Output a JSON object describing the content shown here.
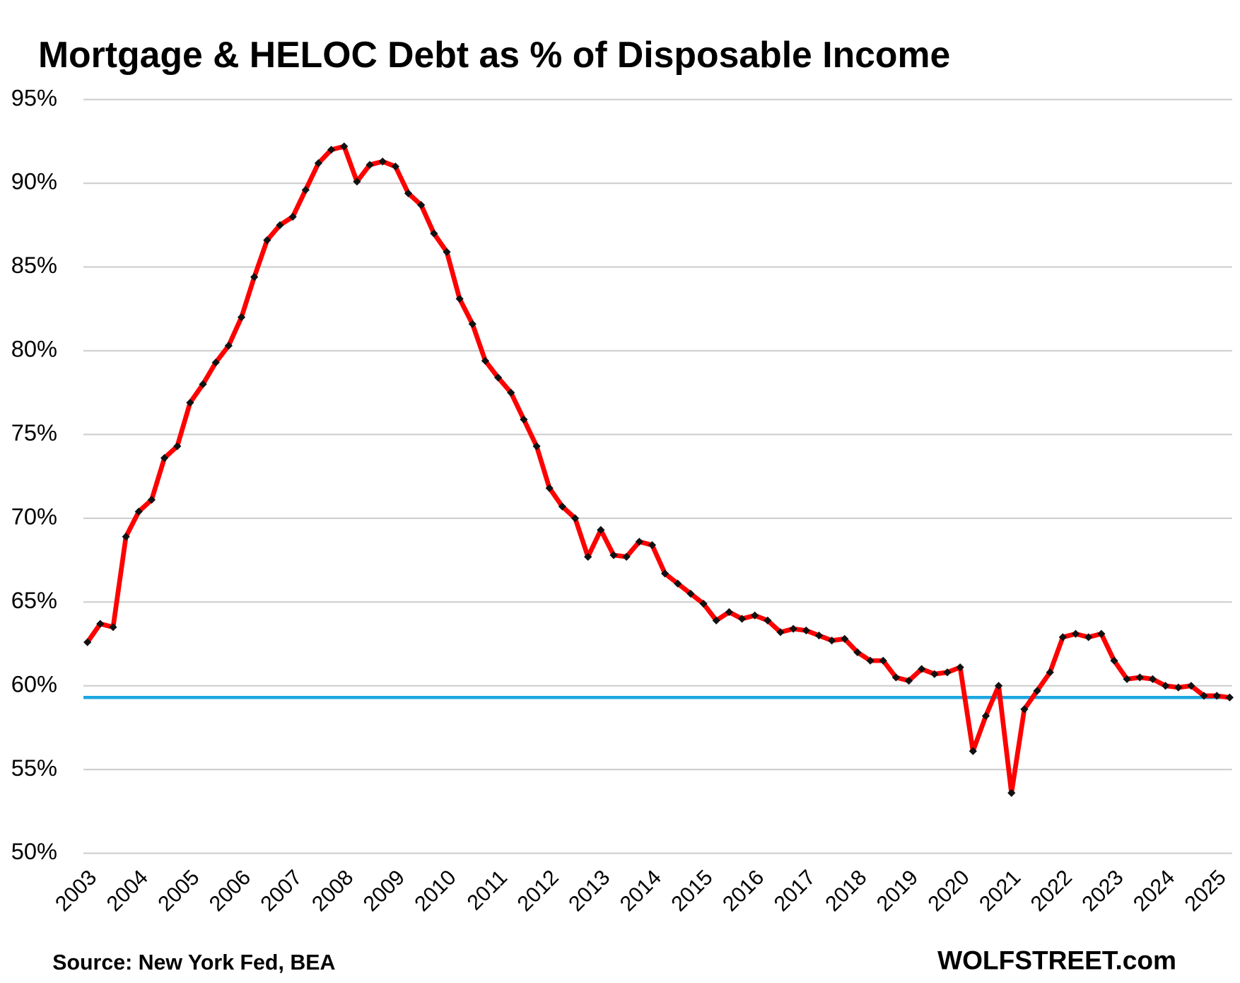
{
  "chart_data": {
    "type": "line",
    "title": "Mortgage & HELOC Debt as % of Disposable Income",
    "source": "Source: New York Fed, BEA",
    "brand": "WOLFSTREET.com",
    "categories": [
      "2003",
      null,
      null,
      null,
      "2004",
      null,
      null,
      null,
      "2005",
      null,
      null,
      null,
      "2006",
      null,
      null,
      null,
      "2007",
      null,
      null,
      null,
      "2008",
      null,
      null,
      null,
      "2009",
      null,
      null,
      null,
      "2010",
      null,
      null,
      null,
      "2011",
      null,
      null,
      null,
      "2012",
      null,
      null,
      null,
      "2013",
      null,
      null,
      null,
      "2014",
      null,
      null,
      null,
      "2015",
      null,
      null,
      null,
      "2016",
      null,
      null,
      null,
      "2017",
      null,
      null,
      null,
      "2018",
      null,
      null,
      null,
      "2019",
      null,
      null,
      null,
      "2020",
      null,
      null,
      null,
      "2021",
      null,
      null,
      null,
      "2022",
      null,
      null,
      null,
      "2023",
      null,
      null,
      null,
      "2024",
      null,
      null,
      null,
      "2025",
      null
    ],
    "series": [
      {
        "color": "#ff0000",
        "marker_color": "#111111",
        "values": [
          62.6,
          63.7,
          63.5,
          68.9,
          70.4,
          71.1,
          73.6,
          74.3,
          76.9,
          78.0,
          79.3,
          80.3,
          82.0,
          84.4,
          86.6,
          87.5,
          88.0,
          89.6,
          91.2,
          92.0,
          92.2,
          90.1,
          91.1,
          91.3,
          91.0,
          89.4,
          88.7,
          87.0,
          85.9,
          83.1,
          81.6,
          79.4,
          78.4,
          77.5,
          75.9,
          74.3,
          71.8,
          70.7,
          70.0,
          67.7,
          69.3,
          67.8,
          67.7,
          68.6,
          68.4,
          66.7,
          66.1,
          65.5,
          64.9,
          63.9,
          64.4,
          64.0,
          64.2,
          63.9,
          63.2,
          63.4,
          63.3,
          63.0,
          62.7,
          62.8,
          62.0,
          61.5,
          61.5,
          60.5,
          60.3,
          61.0,
          60.7,
          60.8,
          61.1,
          56.1,
          58.2,
          60.0,
          53.6,
          58.6,
          59.7,
          60.8,
          62.9,
          63.1,
          62.9,
          63.1,
          61.5,
          60.4,
          60.5,
          60.4,
          60.0,
          59.9,
          60.0,
          59.4,
          59.4,
          59.3
        ]
      }
    ],
    "reference_line": {
      "value": 59.3,
      "color": "#1aa7e0"
    },
    "ylim": [
      50,
      95
    ],
    "yticks": [
      {
        "value": 50,
        "label": "50%"
      },
      {
        "value": 55,
        "label": "55%"
      },
      {
        "value": 60,
        "label": "60%"
      },
      {
        "value": 65,
        "label": "65%"
      },
      {
        "value": 70,
        "label": "70%"
      },
      {
        "value": 75,
        "label": "75%"
      },
      {
        "value": 80,
        "label": "80%"
      },
      {
        "value": 85,
        "label": "85%"
      },
      {
        "value": 90,
        "label": "90%"
      },
      {
        "value": 95,
        "label": "95%"
      }
    ],
    "grid": true
  }
}
